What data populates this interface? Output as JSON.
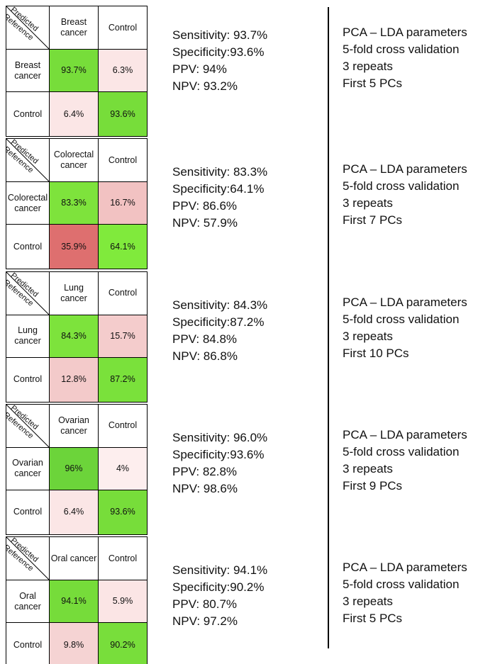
{
  "panels": [
    {
      "matrix": {
        "predicted": "Predicted",
        "reference": "Reference",
        "columns": [
          "Breast cancer",
          "Control"
        ],
        "rows": [
          {
            "label": "Breast cancer",
            "cells": [
              "93.7%",
              "6.3%"
            ],
            "fills": [
              "#77dd3a",
              "#fbe6e6"
            ]
          },
          {
            "label": "Control",
            "cells": [
              "6.4%",
              "93.6%"
            ],
            "fills": [
              "#fbe6e6",
              "#77dd3a"
            ]
          }
        ]
      },
      "stats": [
        "Sensitivity: 93.7%",
        "Specificity:93.6%",
        "PPV: 94%",
        "NPV: 93.2%"
      ],
      "parameters": [
        "PCA – LDA parameters",
        "5-fold cross validation",
        "3 repeats",
        "First 5 PCs"
      ]
    },
    {
      "matrix": {
        "predicted": "Predicted",
        "reference": "Reference",
        "columns": [
          "Colorectal cancer",
          "Control"
        ],
        "rows": [
          {
            "label": "Colorectal cancer",
            "cells": [
              "83.3%",
              "16.7%"
            ],
            "fills": [
              "#7ee33c",
              "#f2c2c2"
            ]
          },
          {
            "label": "Control",
            "cells": [
              "35.9%",
              "64.1%"
            ],
            "fills": [
              "#de6f6f",
              "#80ea3c"
            ]
          }
        ]
      },
      "stats": [
        "Sensitivity: 83.3%",
        "Specificity:64.1%",
        "PPV: 86.6%",
        "NPV: 57.9%"
      ],
      "parameters": [
        "PCA – LDA parameters",
        "5-fold cross validation",
        "3 repeats",
        "First 7 PCs"
      ]
    },
    {
      "matrix": {
        "predicted": "Predicted",
        "reference": "Reference",
        "columns": [
          "Lung cancer",
          "Control"
        ],
        "rows": [
          {
            "label": "Lung cancer",
            "cells": [
              "84.3%",
              "15.7%"
            ],
            "fills": [
              "#7de33c",
              "#f4cccc"
            ]
          },
          {
            "label": "Control",
            "cells": [
              "12.8%",
              "87.2%"
            ],
            "fills": [
              "#f3caca",
              "#7ae13b"
            ]
          }
        ]
      },
      "stats": [
        "Sensitivity: 84.3%",
        "Specificity:87.2%",
        "PPV: 84.8%",
        "NPV: 86.8%"
      ],
      "parameters": [
        "PCA – LDA parameters",
        "5-fold cross validation",
        "3 repeats",
        "First 10 PCs"
      ]
    },
    {
      "matrix": {
        "predicted": "Predicted",
        "reference": "Reference",
        "columns": [
          "Ovarian cancer",
          "Control"
        ],
        "rows": [
          {
            "label": "Ovarian cancer",
            "cells": [
              "96%",
              "4%"
            ],
            "fills": [
              "#6cd43a",
              "#fdeeee"
            ]
          },
          {
            "label": "Control",
            "cells": [
              "6.4%",
              "93.6%"
            ],
            "fills": [
              "#fbe6e6",
              "#77dd3a"
            ]
          }
        ]
      },
      "stats": [
        "Sensitivity: 96.0%",
        "Specificity:93.6%",
        "PPV: 82.8%",
        "NPV: 98.6%"
      ],
      "parameters": [
        "PCA – LDA parameters",
        "5-fold cross validation",
        "3 repeats",
        "First 9 PCs"
      ]
    },
    {
      "matrix": {
        "predicted": "Predicted",
        "reference": "Reference",
        "columns": [
          "Oral cancer",
          "Control"
        ],
        "rows": [
          {
            "label": "Oral cancer",
            "cells": [
              "94.1%",
              "5.9%"
            ],
            "fills": [
              "#76dc3a",
              "#fbe5e5"
            ]
          },
          {
            "label": "Control",
            "cells": [
              "9.8%",
              "90.2%"
            ],
            "fills": [
              "#f5d3d3",
              "#78de3b"
            ]
          }
        ]
      },
      "stats": [
        "Sensitivity: 94.1%",
        "Specificity:90.2%",
        "PPV: 80.7%",
        "NPV: 97.2%"
      ],
      "parameters": [
        "PCA – LDA parameters",
        "5-fold cross validation",
        "3 repeats",
        "First 5 PCs"
      ]
    }
  ]
}
